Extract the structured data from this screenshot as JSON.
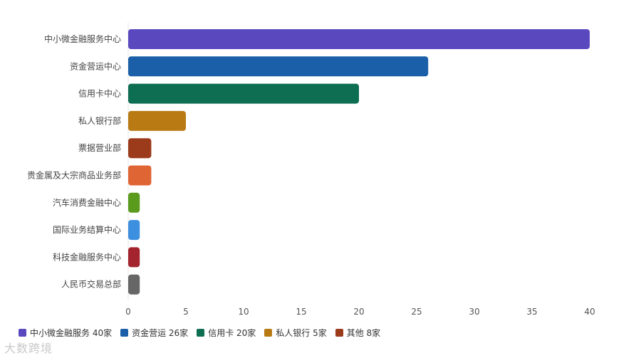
{
  "chart_data": {
    "type": "bar",
    "orientation": "horizontal",
    "categories": [
      "中小微金融服务中心",
      "资金营运中心",
      "信用卡中心",
      "私人银行部",
      "票据营业部",
      "贵金属及大宗商品业务部",
      "汽车消费金融中心",
      "国际业务结算中心",
      "科技金融服务中心",
      "人民币交易总部"
    ],
    "values": [
      40,
      26,
      20,
      5,
      2,
      2,
      1,
      1,
      1,
      1
    ],
    "colors": [
      "#5a48bf",
      "#1a5fa8",
      "#0e6e52",
      "#b97a14",
      "#9c3a1c",
      "#e06535",
      "#5a9a1c",
      "#3d8fe0",
      "#a3242e",
      "#666666"
    ],
    "xlim": [
      0,
      40
    ],
    "xticks": [
      0,
      5,
      10,
      15,
      20,
      25,
      30,
      35,
      40
    ],
    "grid": false,
    "legend_position": "bottom-left",
    "legend": [
      {
        "label": "中小微金融服务 40家",
        "color": "#5a48bf"
      },
      {
        "label": "资金营运 26家",
        "color": "#1a5fa8"
      },
      {
        "label": "信用卡 20家",
        "color": "#0e6e52"
      },
      {
        "label": "私人银行 5家",
        "color": "#b97a14"
      },
      {
        "label": "其他 8家",
        "color": "#9c3a1c"
      }
    ]
  },
  "watermark": "大数跨境"
}
